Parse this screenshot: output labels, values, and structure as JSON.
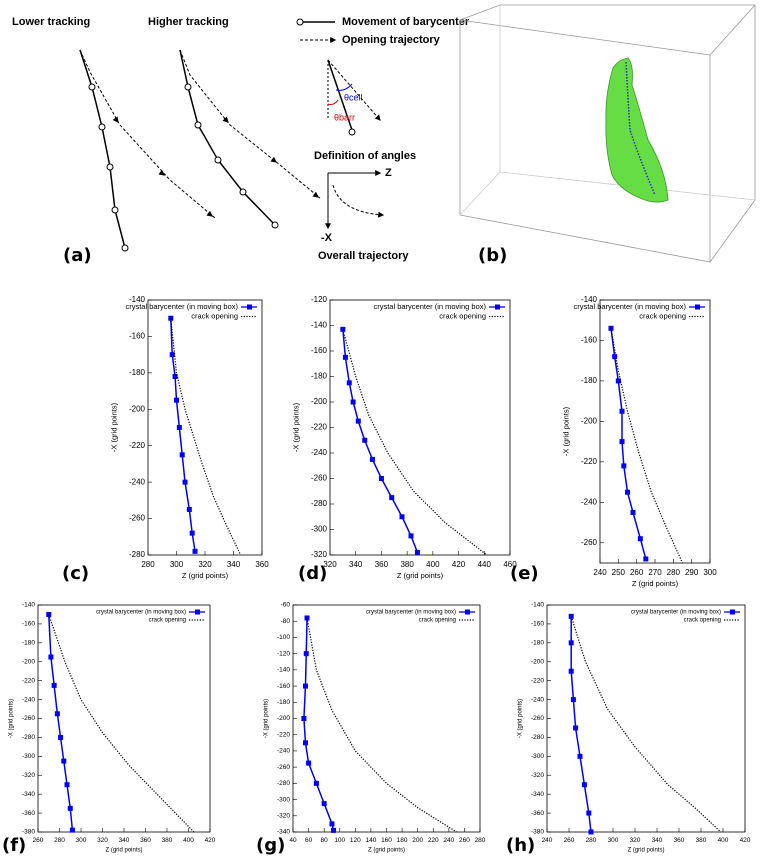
{
  "schematic": {
    "panel_label": "(a)",
    "lower": "Lower tracking",
    "higher": "Higher tracking",
    "legend_movement": "Movement of barycenter",
    "legend_opening": "Opening trajectory",
    "theta_cell": "θcell",
    "theta_barr": "θbarr",
    "angles_caption": "Definition of angles",
    "axis_z": "Z",
    "axis_x": "-X",
    "overall_caption": "Overall trajectory"
  },
  "render": {
    "panel_label": "(b)"
  },
  "chart_data": [
    {
      "type": "line",
      "panel_label": "(c)",
      "x_label": "Z (grid points)",
      "y_label": "-X (grid points)",
      "xlim": [
        280,
        360
      ],
      "xticks": [
        280,
        300,
        320,
        340,
        360
      ],
      "ylim": [
        -280,
        -140
      ],
      "yticks": [
        -140,
        -160,
        -180,
        -200,
        -220,
        -240,
        -260,
        -280
      ],
      "series": [
        {
          "name": "crystal barycenter (in moving box)",
          "color": "#0000ff",
          "marker": "square",
          "x": [
            296,
            297,
            299,
            300,
            302,
            304,
            306,
            309,
            311,
            313
          ],
          "values": [
            -150,
            -170,
            -182,
            -195,
            -210,
            -225,
            -240,
            -255,
            -268,
            -278
          ]
        },
        {
          "name": "crack opening",
          "color": "#000000",
          "dash": "dotted",
          "x": [
            296,
            300,
            306,
            312,
            318,
            326,
            334,
            345
          ],
          "values": [
            -150,
            -180,
            -200,
            -215,
            -230,
            -248,
            -262,
            -280
          ]
        }
      ]
    },
    {
      "type": "line",
      "panel_label": "(d)",
      "x_label": "Z (grid points)",
      "y_label": "-X (grid points)",
      "xlim": [
        320,
        460
      ],
      "xticks": [
        320,
        340,
        360,
        380,
        400,
        420,
        440,
        460
      ],
      "ylim": [
        -320,
        -120
      ],
      "yticks": [
        -120,
        -140,
        -160,
        -180,
        -200,
        -220,
        -240,
        -260,
        -280,
        -300,
        -320
      ],
      "series": [
        {
          "name": "crystal barycenter (in moving box)",
          "color": "#0000ff",
          "marker": "square",
          "x": [
            330,
            332,
            335,
            338,
            342,
            347,
            353,
            360,
            368,
            376,
            383,
            388
          ],
          "values": [
            -143,
            -165,
            -185,
            -200,
            -215,
            -230,
            -245,
            -260,
            -275,
            -290,
            -305,
            -318
          ]
        },
        {
          "name": "crack opening",
          "color": "#000000",
          "dash": "dotted",
          "x": [
            330,
            340,
            350,
            365,
            385,
            410,
            442
          ],
          "values": [
            -143,
            -180,
            -210,
            -240,
            -270,
            -295,
            -320
          ]
        }
      ]
    },
    {
      "type": "line",
      "panel_label": "(e)",
      "x_label": "Z (grid points)",
      "y_label": "-X (grid points)",
      "xlim": [
        240,
        300
      ],
      "xticks": [
        240,
        250,
        260,
        270,
        280,
        290,
        300
      ],
      "ylim": [
        -270,
        -140
      ],
      "yticks": [
        -140,
        -160,
        -180,
        -200,
        -220,
        -240,
        -260
      ],
      "series": [
        {
          "name": "crystal barycenter (in moving box)",
          "color": "#0000ff",
          "marker": "square",
          "x": [
            246,
            248,
            250,
            252,
            252,
            253,
            255,
            258,
            262,
            265
          ],
          "values": [
            -154,
            -168,
            -180,
            -195,
            -210,
            -222,
            -235,
            -245,
            -258,
            -268
          ]
        },
        {
          "name": "crack opening",
          "color": "#000000",
          "dash": "dotted",
          "x": [
            246,
            250,
            255,
            261,
            268,
            276,
            285
          ],
          "values": [
            -154,
            -175,
            -195,
            -215,
            -235,
            -252,
            -270
          ]
        }
      ]
    },
    {
      "type": "line",
      "panel_label": "(f)",
      "x_label": "Z (grid points)",
      "y_label": "-X (grid points)",
      "xlim": [
        260,
        420
      ],
      "xticks": [
        260,
        280,
        300,
        320,
        340,
        360,
        380,
        400,
        420
      ],
      "ylim": [
        -380,
        -140
      ],
      "yticks": [
        -140,
        -160,
        -180,
        -200,
        -220,
        -240,
        -260,
        -280,
        -300,
        -320,
        -340,
        -360,
        -380
      ],
      "series": [
        {
          "name": "crystal barycenter (in moving box)",
          "color": "#0000ff",
          "marker": "square",
          "x": [
            270,
            272,
            275,
            278,
            281,
            284,
            287,
            290,
            292
          ],
          "values": [
            -150,
            -195,
            -225,
            -255,
            -280,
            -305,
            -330,
            -355,
            -378
          ]
        },
        {
          "name": "crack opening",
          "color": "#000000",
          "dash": "dotted",
          "x": [
            270,
            285,
            300,
            320,
            345,
            375,
            405
          ],
          "values": [
            -150,
            -200,
            -240,
            -275,
            -310,
            -345,
            -380
          ]
        }
      ]
    },
    {
      "type": "line",
      "panel_label": "(g)",
      "x_label": "Z (grid points)",
      "y_label": "-X (grid points)",
      "xlim": [
        40,
        280
      ],
      "xticks": [
        40,
        60,
        80,
        100,
        120,
        140,
        160,
        180,
        200,
        220,
        240,
        260,
        280
      ],
      "ylim": [
        -340,
        -60
      ],
      "yticks": [
        -60,
        -80,
        -100,
        -120,
        -140,
        -160,
        -180,
        -200,
        -220,
        -240,
        -260,
        -280,
        -300,
        -320,
        -340
      ],
      "series": [
        {
          "name": "crystal barycenter (in moving box)",
          "color": "#0000ff",
          "marker": "square",
          "x": [
            58,
            57,
            56,
            54,
            56,
            60,
            70,
            80,
            90,
            92
          ],
          "values": [
            -76,
            -120,
            -160,
            -200,
            -230,
            -255,
            -280,
            -305,
            -330,
            -338
          ]
        },
        {
          "name": "crack opening",
          "color": "#000000",
          "dash": "dotted",
          "x": [
            58,
            70,
            90,
            120,
            160,
            200,
            250
          ],
          "values": [
            -76,
            -140,
            -190,
            -240,
            -280,
            -310,
            -340
          ]
        }
      ]
    },
    {
      "type": "line",
      "panel_label": "(h)",
      "x_label": "Z (grid points)",
      "y_label": "-X (grid points)",
      "xlim": [
        240,
        420
      ],
      "xticks": [
        240,
        260,
        280,
        300,
        320,
        340,
        360,
        380,
        400,
        420
      ],
      "ylim": [
        -380,
        -140
      ],
      "yticks": [
        -140,
        -160,
        -180,
        -200,
        -220,
        -240,
        -260,
        -280,
        -300,
        -320,
        -340,
        -360,
        -380
      ],
      "series": [
        {
          "name": "crystal barycenter (in moving box)",
          "color": "#0000ff",
          "marker": "square",
          "x": [
            262,
            262,
            262,
            264,
            266,
            270,
            274,
            278,
            280
          ],
          "values": [
            -152,
            -180,
            -210,
            -240,
            -270,
            -300,
            -330,
            -360,
            -380
          ]
        },
        {
          "name": "crack opening",
          "color": "#000000",
          "dash": "dotted",
          "x": [
            262,
            275,
            295,
            320,
            350,
            375,
            398
          ],
          "values": [
            -152,
            -200,
            -250,
            -290,
            -330,
            -355,
            -380
          ]
        }
      ]
    }
  ]
}
